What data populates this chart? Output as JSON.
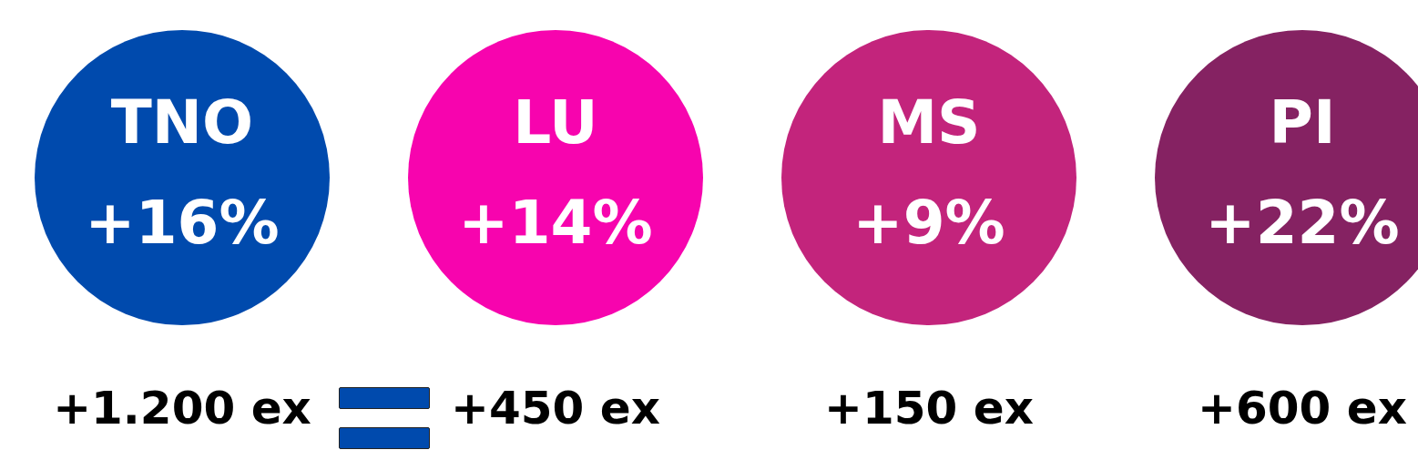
{
  "chart_data": {
    "type": "other",
    "categories": [
      "TNO",
      "LU",
      "MS",
      "PI"
    ],
    "series": [
      {
        "colors": [
          "#004aad",
          "#f704ae",
          "#c3247c",
          "#852262"
        ],
        "values": [
          16,
          14,
          9,
          22
        ],
        "value_labels": [
          "+16%",
          "+14%",
          "+9%",
          "+22%"
        ]
      },
      {
        "color": "#000000",
        "values": [
          1200,
          450,
          150,
          600
        ],
        "value_labels": [
          "+1.200 ex",
          "+450 ex",
          "+150 ex",
          "+600 ex"
        ]
      }
    ]
  }
}
